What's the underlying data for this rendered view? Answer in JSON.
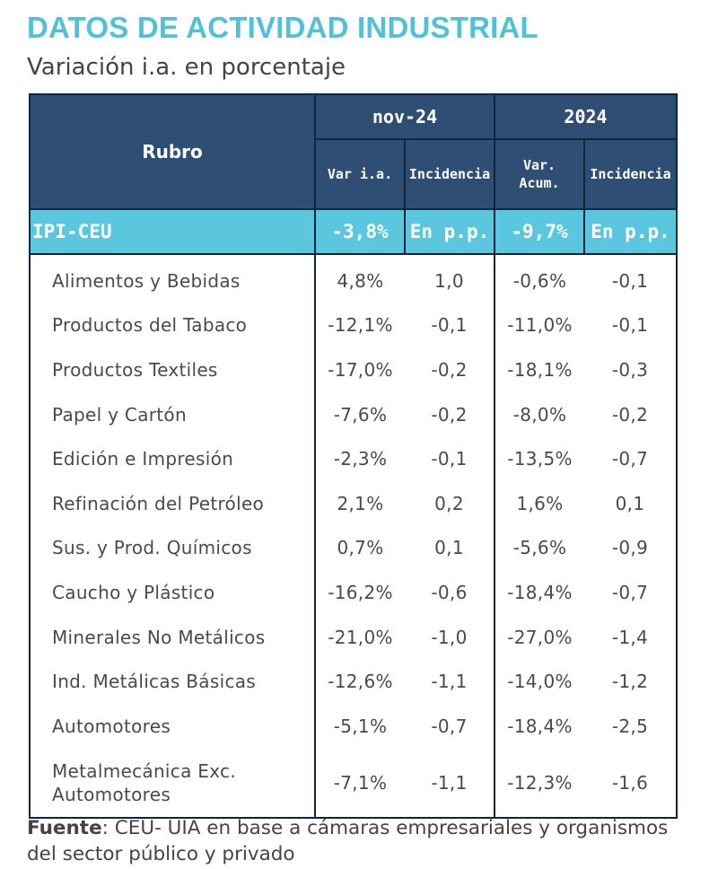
{
  "title": "DATOS DE ACTIVIDAD INDUSTRIAL",
  "subtitle": "Variación i.a. en porcentaje",
  "table": {
    "rubro_header": "Rubro",
    "group_headers": [
      "nov-24",
      "2024"
    ],
    "sub_headers": {
      "nov_var": "Var i.a.",
      "nov_inc": "Incidencia",
      "acum_var_line1": "Var.",
      "acum_var_line2": "Acum.",
      "acum_inc": "Incidencia"
    },
    "ipi": {
      "label": "IPI-CEU",
      "nov_var": "-3,8%",
      "nov_inc": "En p.p.",
      "acum_var": "-9,7%",
      "acum_inc": "En p.p."
    },
    "rows": [
      {
        "name": "Alimentos y Bebidas",
        "nov_var": "4,8%",
        "nov_inc": "1,0",
        "acum_var": "-0,6%",
        "acum_inc": "-0,1"
      },
      {
        "name": "Productos del Tabaco",
        "nov_var": "-12,1%",
        "nov_inc": "-0,1",
        "acum_var": "-11,0%",
        "acum_inc": "-0,1"
      },
      {
        "name": "Productos Textiles",
        "nov_var": "-17,0%",
        "nov_inc": "-0,2",
        "acum_var": "-18,1%",
        "acum_inc": "-0,3"
      },
      {
        "name": "Papel y Cartón",
        "nov_var": "-7,6%",
        "nov_inc": "-0,2",
        "acum_var": "-8,0%",
        "acum_inc": "-0,2"
      },
      {
        "name": "Edición e Impresión",
        "nov_var": "-2,3%",
        "nov_inc": "-0,1",
        "acum_var": "-13,5%",
        "acum_inc": "-0,7"
      },
      {
        "name": "Refinación del Petróleo",
        "nov_var": "2,1%",
        "nov_inc": "0,2",
        "acum_var": "1,6%",
        "acum_inc": "0,1"
      },
      {
        "name": "Sus. y Prod. Químicos",
        "nov_var": "0,7%",
        "nov_inc": "0,1",
        "acum_var": "-5,6%",
        "acum_inc": "-0,9"
      },
      {
        "name": "Caucho y Plástico",
        "nov_var": "-16,2%",
        "nov_inc": "-0,6",
        "acum_var": "-18,4%",
        "acum_inc": "-0,7"
      },
      {
        "name": "Minerales No Metálicos",
        "nov_var": "-21,0%",
        "nov_inc": "-1,0",
        "acum_var": "-27,0%",
        "acum_inc": "-1,4"
      },
      {
        "name": "Ind. Metálicas Básicas",
        "nov_var": "-12,6%",
        "nov_inc": "-1,1",
        "acum_var": "-14,0%",
        "acum_inc": "-1,2"
      },
      {
        "name": "Automotores",
        "nov_var": "-5,1%",
        "nov_inc": "-0,7",
        "acum_var": "-18,4%",
        "acum_inc": "-2,5"
      },
      {
        "name": "Metalmecánica Exc. Automotores",
        "name_line1": "Metalmecánica Exc.",
        "name_line2": "Automotores",
        "nov_var": "-7,1%",
        "nov_inc": "-1,1",
        "acum_var": "-12,3%",
        "acum_inc": "-1,6"
      }
    ]
  },
  "source": {
    "label": "Fuente",
    "text": ": CEU- UIA en base a cámaras empresariales y organismos del sector público y privado"
  },
  "colors": {
    "title": "#4fc1d8",
    "header_bg": "#2e4f73",
    "ipi_bg": "#5ac7de",
    "negative": "#c0394d",
    "positive": "#4f9a3c"
  }
}
